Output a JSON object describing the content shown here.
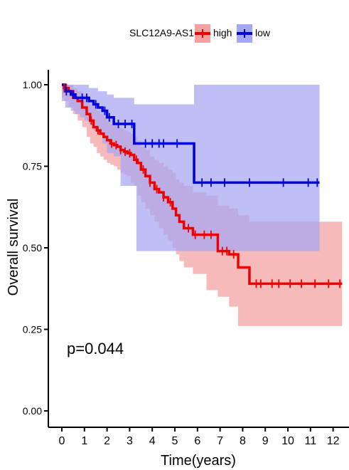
{
  "chart_data": {
    "type": "line",
    "subtype": "kaplan-meier",
    "title": "",
    "xlabel": "Time(years)",
    "ylabel": "Overall survival",
    "xlim": [
      0,
      12.5
    ],
    "ylim": [
      0,
      1.0
    ],
    "x_ticks": [
      "0",
      "1",
      "2",
      "3",
      "4",
      "5",
      "6",
      "7",
      "8",
      "9",
      "10",
      "11",
      "12"
    ],
    "y_ticks": [
      "0.00",
      "0.25",
      "0.50",
      "0.75",
      "1.00"
    ],
    "legend": {
      "title": "SLC12A9-AS1",
      "position": "top",
      "entries": [
        "high",
        "low"
      ]
    },
    "annotation": "p=0.044",
    "grid": false,
    "series": [
      {
        "name": "high",
        "color": "#ee0000",
        "ci_color": "#f4a0a0",
        "x": [
          0,
          0.1,
          0.3,
          0.5,
          0.7,
          0.9,
          1.1,
          1.25,
          1.4,
          1.55,
          1.7,
          1.85,
          2.0,
          2.15,
          2.3,
          2.45,
          2.6,
          2.75,
          2.9,
          3.05,
          3.2,
          3.35,
          3.5,
          3.7,
          3.9,
          4.1,
          4.3,
          4.5,
          4.7,
          4.9,
          5.05,
          5.2,
          5.4,
          5.8,
          6.4,
          6.9,
          7.4,
          7.8,
          8.3,
          12.4
        ],
        "y": [
          1.0,
          0.99,
          0.98,
          0.96,
          0.95,
          0.93,
          0.91,
          0.89,
          0.87,
          0.86,
          0.85,
          0.84,
          0.83,
          0.82,
          0.815,
          0.81,
          0.8,
          0.795,
          0.79,
          0.785,
          0.77,
          0.76,
          0.74,
          0.72,
          0.7,
          0.68,
          0.67,
          0.655,
          0.64,
          0.62,
          0.6,
          0.58,
          0.56,
          0.54,
          0.54,
          0.49,
          0.48,
          0.44,
          0.39,
          0.39
        ],
        "ci_upper": [
          1.0,
          1.0,
          1.0,
          0.99,
          0.98,
          0.97,
          0.95,
          0.94,
          0.93,
          0.92,
          0.91,
          0.9,
          0.89,
          0.88,
          0.875,
          0.87,
          0.865,
          0.86,
          0.855,
          0.85,
          0.84,
          0.83,
          0.81,
          0.8,
          0.78,
          0.77,
          0.76,
          0.75,
          0.74,
          0.73,
          0.71,
          0.7,
          0.69,
          0.67,
          0.66,
          0.63,
          0.62,
          0.6,
          0.58,
          0.58
        ],
        "ci_lower": [
          0.97,
          0.96,
          0.95,
          0.93,
          0.91,
          0.89,
          0.87,
          0.84,
          0.82,
          0.81,
          0.79,
          0.78,
          0.77,
          0.76,
          0.755,
          0.75,
          0.74,
          0.73,
          0.725,
          0.72,
          0.7,
          0.69,
          0.66,
          0.64,
          0.62,
          0.6,
          0.58,
          0.56,
          0.54,
          0.52,
          0.5,
          0.48,
          0.46,
          0.44,
          0.42,
          0.37,
          0.35,
          0.32,
          0.26,
          0.26
        ],
        "censor_x": [
          0.1,
          0.2,
          1.3,
          1.6,
          2.2,
          2.4,
          2.6,
          2.8,
          3.0,
          3.3,
          3.6,
          3.9,
          4.2,
          4.5,
          4.8,
          5.6,
          5.9,
          6.3,
          6.6,
          7.1,
          7.3,
          7.6,
          8.6,
          8.8,
          9.3,
          9.6,
          10.1,
          10.6,
          11.2,
          11.8,
          12.3
        ]
      },
      {
        "name": "low",
        "color": "#0000dd",
        "ci_color": "#a6a6f2",
        "x": [
          0,
          0.15,
          0.4,
          0.6,
          0.8,
          1.0,
          1.2,
          1.4,
          1.6,
          1.8,
          2.0,
          2.3,
          2.6,
          3.2,
          3.3,
          5.85,
          11.4
        ],
        "y": [
          1.0,
          0.98,
          0.97,
          0.96,
          0.96,
          0.96,
          0.95,
          0.94,
          0.93,
          0.92,
          0.9,
          0.88,
          0.88,
          0.82,
          0.82,
          0.7,
          0.7
        ],
        "ci_upper": [
          1.0,
          1.0,
          1.0,
          1.0,
          1.0,
          1.0,
          0.99,
          0.99,
          0.98,
          0.98,
          0.97,
          0.96,
          0.96,
          0.94,
          0.94,
          1.0,
          1.0
        ],
        "ci_lower": [
          0.96,
          0.95,
          0.93,
          0.92,
          0.91,
          0.9,
          0.89,
          0.88,
          0.86,
          0.85,
          0.82,
          0.79,
          0.78,
          0.69,
          0.69,
          0.49,
          0.49
        ],
        "censor_x": [
          0.2,
          0.5,
          0.9,
          1.1,
          1.5,
          1.9,
          2.1,
          2.5,
          2.8,
          3.1,
          3.7,
          4.0,
          4.3,
          4.5,
          5.1,
          6.2,
          6.6,
          7.2,
          8.3,
          9.8,
          10.9,
          11.3
        ]
      }
    ]
  }
}
